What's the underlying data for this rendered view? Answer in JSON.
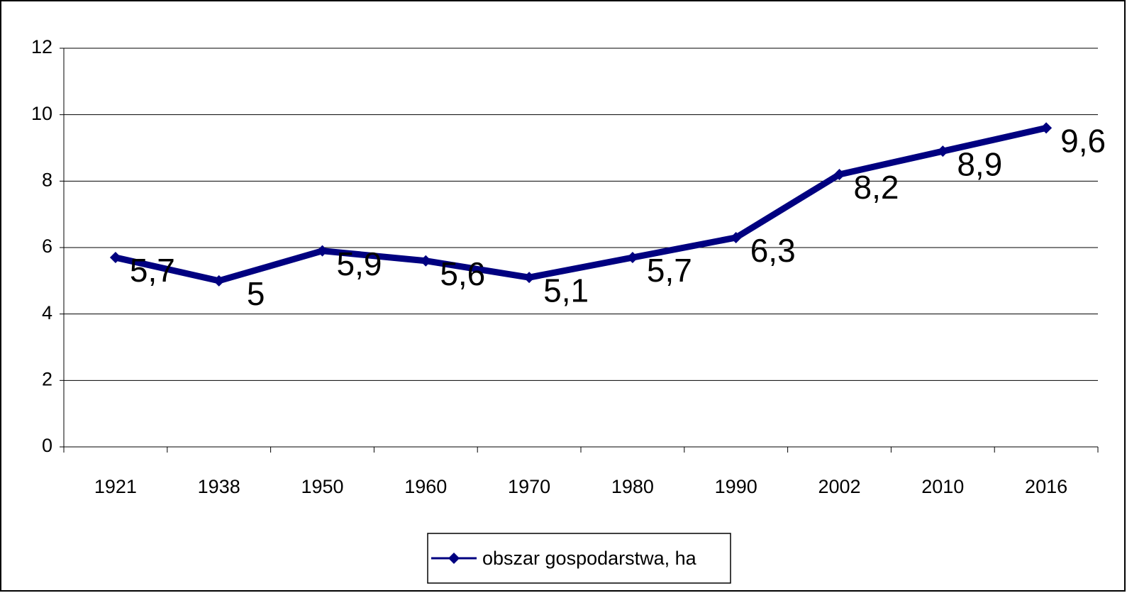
{
  "chart_data": {
    "type": "line",
    "categories": [
      "1921",
      "1938",
      "1950",
      "1960",
      "1970",
      "1980",
      "1990",
      "2002",
      "2010",
      "2016"
    ],
    "series": [
      {
        "name": "obszar gospodarstwa, ha",
        "color": "#000080",
        "values": [
          5.7,
          5,
          5.9,
          5.6,
          5.1,
          5.7,
          6.3,
          8.2,
          8.9,
          9.6
        ],
        "value_labels": [
          "5,7",
          "5",
          "5,9",
          "5,6",
          "5,1",
          "5,7",
          "6,3",
          "8,2",
          "8,9",
          "9,6"
        ]
      }
    ],
    "ylim": [
      0,
      12
    ],
    "yticks": [
      0,
      2,
      4,
      6,
      8,
      10,
      12
    ],
    "grid": true,
    "legend": "bottom"
  }
}
